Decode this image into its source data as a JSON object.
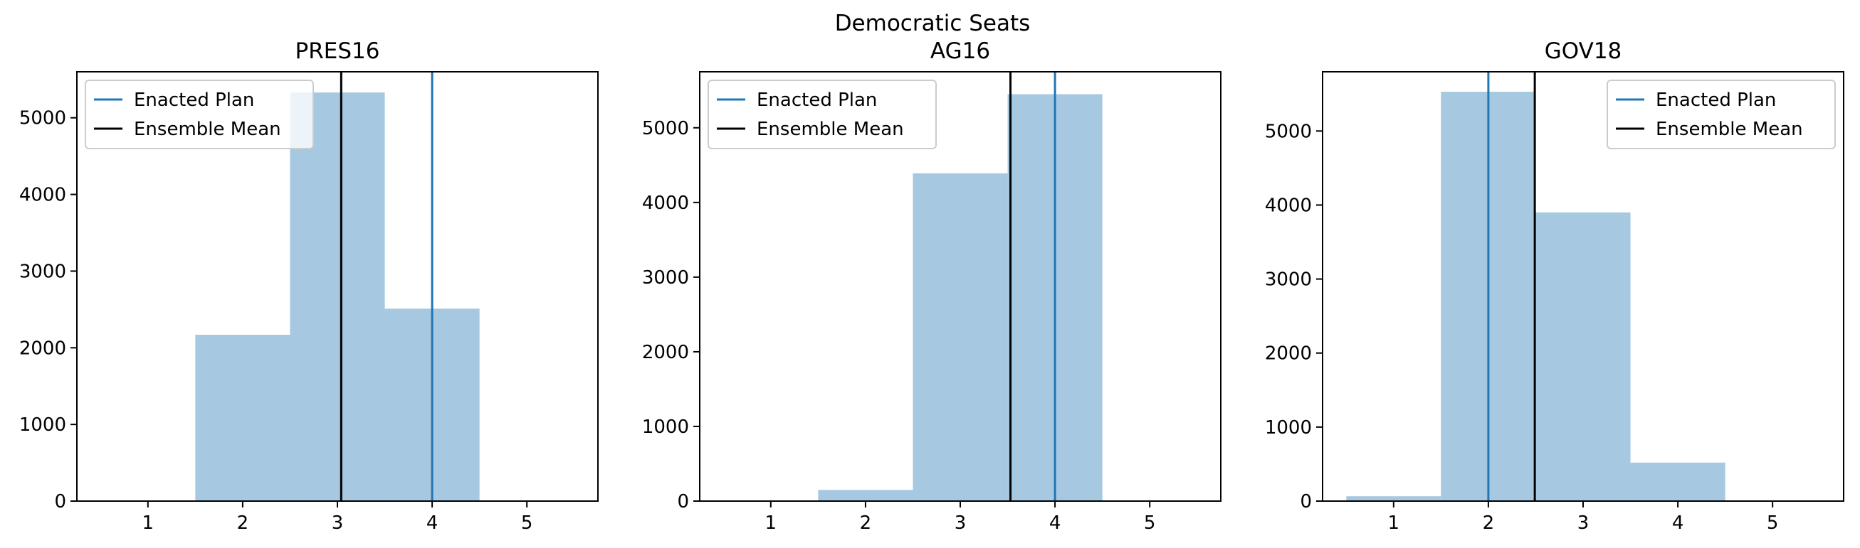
{
  "figure": {
    "suptitle": "Democratic Seats"
  },
  "legend_labels": {
    "enacted": "Enacted Plan",
    "mean": "Ensemble Mean"
  },
  "colors": {
    "bar": "#a6c8e0",
    "enacted": "#1f77b4",
    "mean": "#000000"
  },
  "chart_data": [
    {
      "type": "bar",
      "title": "PRES16",
      "categories": [
        1,
        2,
        3,
        4,
        5
      ],
      "values": [
        0,
        2170,
        5330,
        2510,
        0
      ],
      "xlim": [
        0.25,
        5.75
      ],
      "ylim": [
        0,
        5600
      ],
      "xticks": [
        1,
        2,
        3,
        4,
        5
      ],
      "yticks": [
        0,
        1000,
        2000,
        3000,
        4000,
        5000
      ],
      "enacted_plan": 4,
      "ensemble_mean": 3.04,
      "legend_position": "upper-left",
      "grid": false
    },
    {
      "type": "bar",
      "title": "AG16",
      "categories": [
        1,
        2,
        3,
        4,
        5
      ],
      "values": [
        0,
        150,
        4390,
        5450,
        10
      ],
      "xlim": [
        0.25,
        5.75
      ],
      "ylim": [
        0,
        5750
      ],
      "xticks": [
        1,
        2,
        3,
        4,
        5
      ],
      "yticks": [
        0,
        1000,
        2000,
        3000,
        4000,
        5000
      ],
      "enacted_plan": 4,
      "ensemble_mean": 3.53,
      "legend_position": "upper-left",
      "grid": false
    },
    {
      "type": "bar",
      "title": "GOV18",
      "categories": [
        1,
        2,
        3,
        4,
        5
      ],
      "values": [
        65,
        5530,
        3900,
        520,
        0
      ],
      "xlim": [
        0.25,
        5.75
      ],
      "ylim": [
        0,
        5800
      ],
      "xticks": [
        1,
        2,
        3,
        4,
        5
      ],
      "yticks": [
        0,
        1000,
        2000,
        3000,
        4000,
        5000
      ],
      "enacted_plan": 2,
      "ensemble_mean": 2.49,
      "legend_position": "upper-right",
      "grid": false
    }
  ]
}
